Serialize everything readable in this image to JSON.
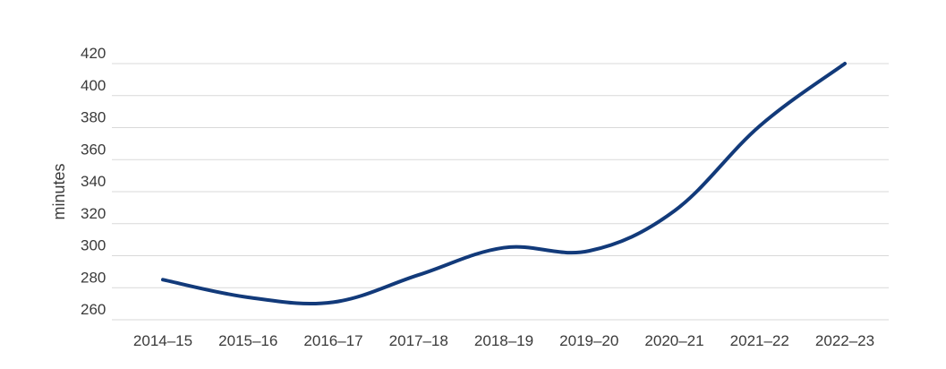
{
  "chart_data": {
    "type": "line",
    "title": "",
    "xlabel": "",
    "ylabel": "minutes",
    "categories": [
      "2014–15",
      "2015–16",
      "2016–17",
      "2017–18",
      "2018–19",
      "2019–20",
      "2020–21",
      "2021–22",
      "2022–23"
    ],
    "series": [
      {
        "values": [
          285,
          274,
          271,
          288,
          305,
          303,
          328,
          381,
          420
        ]
      }
    ],
    "ylim": [
      260,
      420
    ],
    "yticks": [
      260,
      280,
      300,
      320,
      340,
      360,
      380,
      400,
      420
    ],
    "grid": true,
    "legend": "none",
    "line_color": "#123a7a",
    "grid_color": "#d9d9d9"
  }
}
